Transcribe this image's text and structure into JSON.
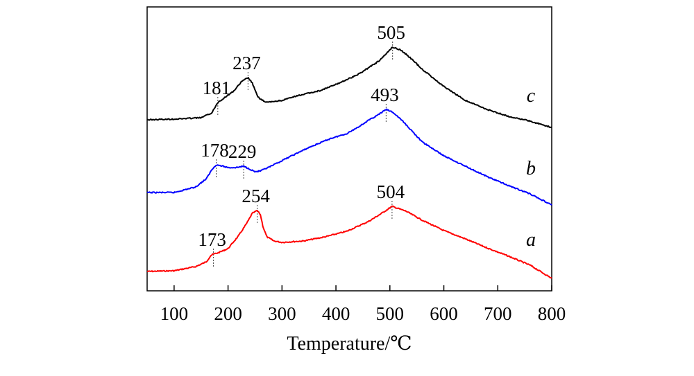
{
  "chart_data": {
    "type": "line",
    "title": "",
    "xlabel": "Temperature/℃",
    "ylabel": "",
    "xlim": [
      50,
      800
    ],
    "xticks": [
      "100",
      "200",
      "300",
      "400",
      "500",
      "600",
      "700",
      "800"
    ],
    "grid": false,
    "series": [
      {
        "name": "a",
        "color": "#ff0000",
        "points": [
          [
            50,
            392
          ],
          [
            100,
            391
          ],
          [
            140,
            385
          ],
          [
            160,
            378
          ],
          [
            168,
            369
          ],
          [
            173,
            367
          ],
          [
            182,
            365
          ],
          [
            200,
            359
          ],
          [
            220,
            340
          ],
          [
            235,
            322
          ],
          [
            245,
            308
          ],
          [
            250,
            306
          ],
          [
            254,
            304
          ],
          [
            260,
            310
          ],
          [
            265,
            328
          ],
          [
            272,
            342
          ],
          [
            285,
            348
          ],
          [
            300,
            350
          ],
          [
            340,
            348
          ],
          [
            380,
            342
          ],
          [
            420,
            334
          ],
          [
            460,
            320
          ],
          [
            485,
            308
          ],
          [
            504,
            298
          ],
          [
            530,
            305
          ],
          [
            560,
            318
          ],
          [
            600,
            333
          ],
          [
            640,
            345
          ],
          [
            680,
            358
          ],
          [
            720,
            370
          ],
          [
            760,
            383
          ],
          [
            800,
            402
          ]
        ],
        "peaks": [
          "173",
          "254",
          "504"
        ]
      },
      {
        "name": "b",
        "color": "#0000ff",
        "points": [
          [
            50,
            278
          ],
          [
            100,
            278
          ],
          [
            140,
            270
          ],
          [
            160,
            258
          ],
          [
            170,
            245
          ],
          [
            178,
            238
          ],
          [
            190,
            240
          ],
          [
            200,
            242
          ],
          [
            215,
            242
          ],
          [
            229,
            240
          ],
          [
            240,
            244
          ],
          [
            250,
            248
          ],
          [
            260,
            247
          ],
          [
            280,
            240
          ],
          [
            310,
            228
          ],
          [
            350,
            213
          ],
          [
            390,
            200
          ],
          [
            420,
            193
          ],
          [
            440,
            184
          ],
          [
            460,
            174
          ],
          [
            480,
            165
          ],
          [
            493,
            158
          ],
          [
            505,
            162
          ],
          [
            520,
            172
          ],
          [
            560,
            205
          ],
          [
            600,
            225
          ],
          [
            640,
            240
          ],
          [
            680,
            255
          ],
          [
            720,
            268
          ],
          [
            760,
            280
          ],
          [
            800,
            296
          ]
        ],
        "peaks": [
          "178",
          "229",
          "493"
        ]
      },
      {
        "name": "c",
        "color": "#000000",
        "points": [
          [
            50,
            173
          ],
          [
            100,
            172
          ],
          [
            150,
            170
          ],
          [
            170,
            163
          ],
          [
            181,
            148
          ],
          [
            195,
            140
          ],
          [
            210,
            132
          ],
          [
            225,
            118
          ],
          [
            237,
            112
          ],
          [
            245,
            120
          ],
          [
            255,
            140
          ],
          [
            270,
            148
          ],
          [
            300,
            145
          ],
          [
            330,
            138
          ],
          [
            370,
            131
          ],
          [
            400,
            122
          ],
          [
            420,
            115
          ],
          [
            440,
            108
          ],
          [
            460,
            98
          ],
          [
            480,
            88
          ],
          [
            495,
            76
          ],
          [
            505,
            68
          ],
          [
            520,
            72
          ],
          [
            540,
            85
          ],
          [
            560,
            100
          ],
          [
            600,
            125
          ],
          [
            640,
            145
          ],
          [
            680,
            158
          ],
          [
            720,
            168
          ],
          [
            760,
            175
          ],
          [
            800,
            184
          ]
        ],
        "peaks": [
          "181",
          "237",
          "505"
        ]
      }
    ],
    "peak_markers": [
      {
        "series": "a",
        "x": 173,
        "label": "173"
      },
      {
        "series": "a",
        "x": 254,
        "label": "254"
      },
      {
        "series": "a",
        "x": 504,
        "label": "504"
      },
      {
        "series": "b",
        "x": 178,
        "label": "178"
      },
      {
        "series": "b",
        "x": 229,
        "label": "229"
      },
      {
        "series": "b",
        "x": 493,
        "label": "493"
      },
      {
        "series": "c",
        "x": 181,
        "label": "181"
      },
      {
        "series": "c",
        "x": 237,
        "label": "237"
      },
      {
        "series": "c",
        "x": 505,
        "label": "505"
      }
    ]
  }
}
